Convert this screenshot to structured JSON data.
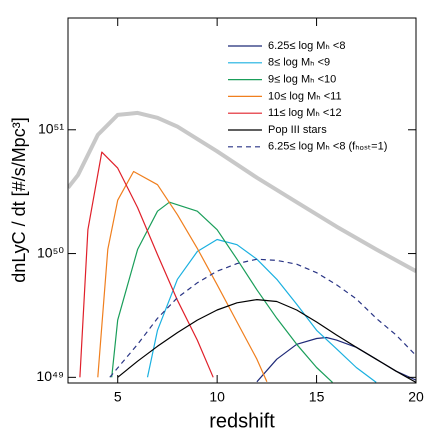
{
  "chart_data": {
    "type": "line",
    "xlabel": "redshift",
    "ylabel": "dnLyC / dt  [#/s/Mpc³]",
    "xlim": [
      2.5,
      20
    ],
    "xticks": [
      5,
      10,
      15,
      20
    ],
    "ylim": [
      9e+48,
      8e+51
    ],
    "log_y": true,
    "yticks": [
      {
        "value": 1e+49,
        "label": "10⁴⁹"
      },
      {
        "value": 1e+50,
        "label": "10⁵⁰"
      },
      {
        "value": 1e+51,
        "label": "10⁵¹"
      }
    ],
    "legend": "upper right",
    "series": [
      {
        "name": "6.25≤ log Mₕ <8",
        "color": "#1f2a78",
        "dash": false,
        "x": [
          12,
          13,
          14,
          15,
          15.5,
          16,
          17,
          18,
          19,
          20
        ],
        "values": [
          9.2e+48,
          1.4e+49,
          1.85e+49,
          2.06e+49,
          2.1e+49,
          2e+49,
          1.75e+49,
          1.4e+49,
          1.12e+49,
          9.5e+48
        ]
      },
      {
        "name": "8≤ log Mₕ <9",
        "color": "#1ab0e0",
        "dash": false,
        "x": [
          6.5,
          7,
          8,
          9,
          10,
          11,
          12,
          13,
          14,
          15,
          16,
          17,
          18
        ],
        "values": [
          1e+49,
          2.4e+49,
          6.2e+49,
          1.04e+50,
          1.3e+50,
          1.18e+50,
          9e+49,
          6.2e+49,
          3.9e+49,
          2.4e+49,
          1.7e+49,
          1.2e+49,
          9.1e+48
        ]
      },
      {
        "name": "9≤ log Mₕ <10",
        "color": "#1a9e5a",
        "dash": false,
        "x": [
          4.7,
          5,
          6,
          7,
          7.6,
          9,
          10,
          11,
          12,
          13,
          14,
          15,
          15.8
        ],
        "values": [
          1e+49,
          2.9e+49,
          1.08e+50,
          2.2e+50,
          2.6e+50,
          2.2e+50,
          1.56e+50,
          9e+49,
          5.1e+49,
          3e+49,
          1.85e+49,
          1.2e+49,
          9.1e+48
        ]
      },
      {
        "name": "10≤ log Mₕ <11",
        "color": "#f07f1e",
        "dash": false,
        "x": [
          4,
          4.5,
          5,
          5.8,
          7,
          8,
          9,
          10,
          11,
          12,
          12.5
        ],
        "values": [
          1e+49,
          1.08e+50,
          2.7e+50,
          4.6e+50,
          3.6e+50,
          2.06e+50,
          1.1e+50,
          5.6e+49,
          2.8e+49,
          1.4e+49,
          9.2e+48
        ]
      },
      {
        "name": "11≤ log Mₕ <12",
        "color": "#e0202a",
        "dash": false,
        "x": [
          3.1,
          3.5,
          4.2,
          5,
          6,
          7,
          8,
          9,
          9.8
        ],
        "values": [
          1e+49,
          1.56e+50,
          6.6e+50,
          4.9e+50,
          2.35e+50,
          9.8e+49,
          4.2e+49,
          2e+49,
          1e+49
        ]
      },
      {
        "name": "Pop III stars",
        "color": "#000000",
        "dash": false,
        "x": [
          5,
          6,
          7,
          8,
          9,
          10,
          11,
          12,
          13,
          14,
          15,
          16,
          17,
          18,
          19,
          20
        ],
        "values": [
          1e+49,
          1.35e+49,
          1.78e+49,
          2.3e+49,
          2.9e+49,
          3.5e+49,
          4e+49,
          4.25e+49,
          4.1e+49,
          3.5e+49,
          2.8e+49,
          2.2e+49,
          1.75e+49,
          1.4e+49,
          1.12e+49,
          9.1e+48
        ]
      },
      {
        "name": "6.25≤ log Mₕ <8 (fₕₒₛₜ=1)",
        "color": "#2a3585",
        "dash": true,
        "x": [
          4.6,
          6,
          7,
          8,
          9,
          10,
          11,
          12,
          13,
          14,
          15,
          16,
          17,
          18,
          19,
          20
        ],
        "values": [
          1e+49,
          1.85e+49,
          3e+49,
          4.4e+49,
          5.8e+49,
          7.2e+49,
          8.3e+49,
          9e+49,
          8.8e+49,
          8.2e+49,
          7e+49,
          5.6e+49,
          4.3e+49,
          3e+49,
          2.2e+49,
          1.5e+49
        ]
      },
      {
        "color": "#c8c8c8",
        "width": 4,
        "dash": false,
        "x": [
          2.5,
          3,
          4,
          5,
          6,
          7,
          8,
          10,
          12,
          14,
          16,
          18,
          20
        ],
        "values": [
          3.4e+50,
          4.3e+50,
          9.1e+50,
          1.32e+51,
          1.37e+51,
          1.25e+51,
          1.06e+51,
          6.7e+50,
          4.1e+50,
          2.6e+50,
          1.65e+50,
          1.08e+50,
          7.2e+49
        ]
      }
    ]
  }
}
